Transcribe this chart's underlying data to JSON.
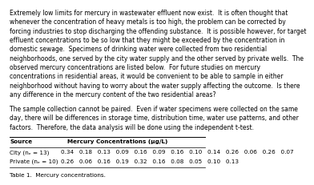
{
  "body_text": [
    "Extremely low limits for mercury in wastewater effluent now exist.  It is often thought that",
    "whenever the concentration of heavy metals is too high, the problem can be corrected by",
    "forcing industries to stop discharging the offending substance.  It is possible however, for target",
    "effluent concentrations to be so low that they might be exceeded by the concentration in",
    "domestic sewage.  Specimens of drinking water were collected from two residential",
    "neighborhoods, one served by the city water supply and the other served by private wells.  The",
    "observed mercury concentrations are listed below.  For future studies on mercury",
    "concentrations in residential areas, it would be convenient to be able to sample in either",
    "neighborhood without having to worry about the water supply affecting the outcome.  Is there",
    "any difference in the mercury content of the two residential areas?"
  ],
  "body_text2": [
    "The sample collection cannot be paired.  Even if water specimens were collected on the same",
    "day, there will be differences in storage time, distribution time, water use patterns, and other",
    "factors.  Therefore, the data analysis will be done using the independent t-test."
  ],
  "table_header_left": "Source",
  "table_header_right": "Mercury Concentrations (µg/L)",
  "table_rows": [
    {
      "label": "City (nₑ = 13)",
      "values": "0.34   0.18   0.13   0.09   0.16   0.09   0.16   0.10   0.14   0.26   0.06   0.26   0.07"
    },
    {
      "label": "Private (nₑ = 10)",
      "values": "0.26   0.06   0.16   0.19   0.32   0.16   0.08   0.05   0.10   0.13"
    }
  ],
  "table_caption": "Table 1.  Mercury concentrations.",
  "font_size_body": 5.5,
  "font_size_table": 5.2,
  "bg_color": "#ffffff",
  "text_color": "#000000"
}
